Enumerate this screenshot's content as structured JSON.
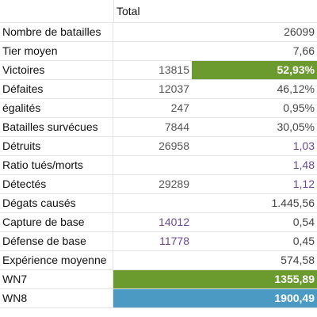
{
  "table": {
    "header": "Total",
    "rows": [
      {
        "label": "Nombre de batailles",
        "count": "",
        "value": "26099"
      },
      {
        "label": "Tier moyen",
        "count": "",
        "value": "7,66"
      },
      {
        "label": "Victoires",
        "count": "13815",
        "value": "52,93%"
      },
      {
        "label": "Défaites",
        "count": "12037",
        "value": "46,12%"
      },
      {
        "label": "égalités",
        "count": "247",
        "value": "0,95%"
      },
      {
        "label": "Batailles survécues",
        "count": "7844",
        "value": "30,05%"
      },
      {
        "label": "Détruits",
        "count": "26958",
        "value": "1,03"
      },
      {
        "label": "Ratio tués/morts",
        "count": "",
        "value": "1,48"
      },
      {
        "label": "Détectés",
        "count": "29289",
        "value": "1,12"
      },
      {
        "label": "Dégats causés",
        "count": "",
        "value": "1.445,56"
      },
      {
        "label": "Capture de base",
        "count": "14012",
        "value": "0,54"
      },
      {
        "label": "Défense de base",
        "count": "11778",
        "value": "0,45"
      },
      {
        "label": "Expérience moyenne",
        "count": "",
        "value": "574,58"
      },
      {
        "label": "WN7",
        "count": "",
        "value": "1355,89"
      },
      {
        "label": "WN8",
        "count": "",
        "value": "1900,49"
      }
    ]
  },
  "colors": {
    "win_highlight": "#6b9b2f",
    "wn7_highlight": "#6b9b2f",
    "wn8_highlight": "#4a9ac4",
    "accent_text": "#6a4a90"
  }
}
